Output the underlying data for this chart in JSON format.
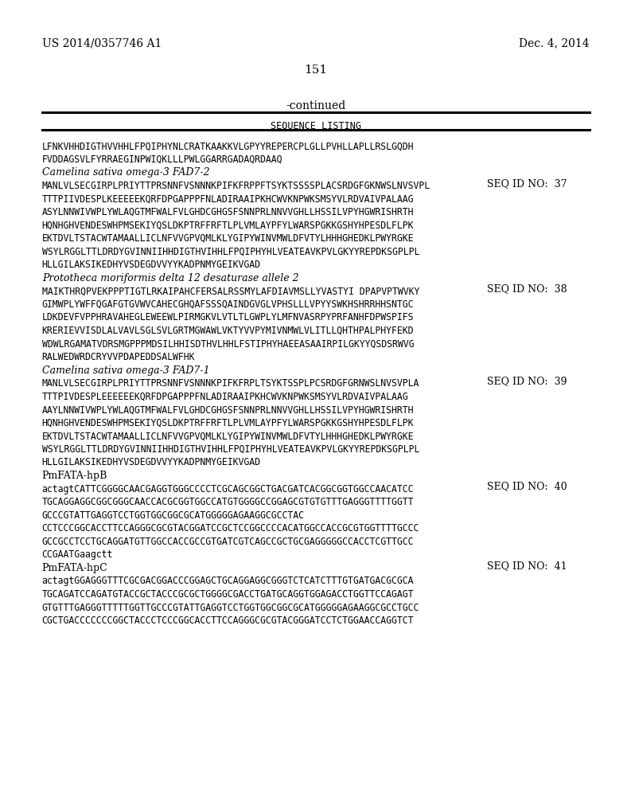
{
  "patent_number": "US 2014/0357746 A1",
  "date": "Dec. 4, 2014",
  "page_number": "151",
  "continued": "-continued",
  "section_title": "SEQUENCE LISTING",
  "background_color": "#ffffff",
  "text_color": "#000000",
  "lines": [
    {
      "text": "LFNKVHHDIGTHVVHHLFPQIPHYNLCRATKAAKKVLGPYYREPERCPLGLLPVHLLAPLLRSLGQDH",
      "style": "mono"
    },
    {
      "text": "",
      "style": ""
    },
    {
      "text": "FVDDAGSVLFYRRAEGINPWIQKLLLPWLGGARRGADAQRDAAQ",
      "style": "mono"
    },
    {
      "text": "",
      "style": ""
    },
    {
      "text": "Camelina sativa omega-3 FAD7-2",
      "style": "italic"
    },
    {
      "text": "",
      "style": ""
    },
    {
      "text": "MANLVLSECGIRPLPRIYTTPRSNNFVSNNNKPIFKFRPPFTSYKTSSSSPLACSRDGFGKNWSLNVSVPL",
      "style": "mono"
    },
    {
      "text": "",
      "style": ""
    },
    {
      "text": "TTTPIIVDESPLKEEEEEKQRFDPGAPPPFNLADIRAAIPKHCWVKNPWKSMSYVLRDVAIVPALAAG",
      "style": "mono"
    },
    {
      "text": "",
      "style": ""
    },
    {
      "text": "ASYLNNWIVWPLYWLAQGTMFWALFVLGHDCGHGSFSNNPRLNNVVGHLLHSSILVPYHGWRISHRTH",
      "style": "mono"
    },
    {
      "text": "",
      "style": ""
    },
    {
      "text": "HQNHGHVENDESWHPMSEKIYQSLDKPTRFFRFTLPLVMLAYPFYLWARSPGKKGSHYHPESDLFLPK",
      "style": "mono"
    },
    {
      "text": "",
      "style": ""
    },
    {
      "text": "EKTDVLTSTACWTAMAALLICLNFVVGPVQMLKLYGIPYWINVMWLDFVTYLHHHGHEDKLPWYRGKE",
      "style": "mono"
    },
    {
      "text": "",
      "style": ""
    },
    {
      "text": "WSYLRGGLTTLDRDYGVINNIIHHDIGTHVIHHLFPQIPHYHLVEATEAVKPVLGKYYREPDKSGPLPL",
      "style": "mono"
    },
    {
      "text": "",
      "style": ""
    },
    {
      "text": "HLLGILAKSIKEDHYVSDEGDVVYYKADPNMYGEIKVGAD",
      "style": "mono"
    },
    {
      "text": "",
      "style": ""
    },
    {
      "text": "Prototheca moriformis delta 12 desaturase allele 2",
      "style": "italic"
    },
    {
      "text": "",
      "style": ""
    },
    {
      "text": "MAIKTHRQPVEKPPPTIGTLRKAIPAHCFERSALRSSMYLAFDIAVMSLLYVASTYI DPAPVPTWVKY",
      "style": "mono"
    },
    {
      "text": "",
      "style": ""
    },
    {
      "text": "GIMWPLYWFFQGAFGTGVWVCAHECGHQAFSSSQAINDGVGLVPHSLLLVPYYSWKHSHRRHHSNTGC",
      "style": "mono"
    },
    {
      "text": "",
      "style": ""
    },
    {
      "text": "LDKDEVFVPPHRAVAHEGLEWEEWLPIRMGKVLVTLTLGWPLYLMFNVASRPYPRFANHFDPWSPIFS",
      "style": "mono"
    },
    {
      "text": "",
      "style": ""
    },
    {
      "text": "KRERIEVVISDLALVAVLSGLSVLGRTMGWAWLVKTYVVPYMIVNMWLVLITLLQHTHPALPHYFEKD",
      "style": "mono"
    },
    {
      "text": "",
      "style": ""
    },
    {
      "text": "WDWLRGAMATVDRSMGPPPMDSILHHISDTHVLHHLFSTIPHYHAEEASAAIRPILGKYYQSDSRWVG",
      "style": "mono"
    },
    {
      "text": "",
      "style": ""
    },
    {
      "text": "RALWEDWRDCRYVVPDAPEDDSALWFHK",
      "style": "mono"
    },
    {
      "text": "",
      "style": ""
    },
    {
      "text": "Camelina sativa omega-3 FAD7-1",
      "style": "italic"
    },
    {
      "text": "",
      "style": ""
    },
    {
      "text": "MANLVLSECGIRPLPRIYTTPRSNNFVSNNNKPIFKFRPLTSYKTSSPLPCSRDGFGRNWSLNVSVPLA",
      "style": "mono"
    },
    {
      "text": "",
      "style": ""
    },
    {
      "text": "TTTPIVDESPLEEEEEEKQRFDPGAPPPFNLADIRAAIPKHCWVKNPWKSMSYVLRDVAIVPALAAG",
      "style": "mono"
    },
    {
      "text": "",
      "style": ""
    },
    {
      "text": "AAYLNNWIVWPLYWLAQGTMFWALFVLGHDCGHGSFSNNPRLNNVVGHLLHSSILVPYHGWRISHRTH",
      "style": "mono"
    },
    {
      "text": "",
      "style": ""
    },
    {
      "text": "HQNHGHVENDESWHPMSEKIYQSLDKPTRFFRFTLPLVMLAYPFYLWARSPGKKGSHYHPESDLFLPK",
      "style": "mono"
    },
    {
      "text": "",
      "style": ""
    },
    {
      "text": "EKTDVLTSTACWTAMAALLICLNFVVGPVQMLKLYGIPYWINVMWLDFVTYLHHHGHEDKLPWYRGKE",
      "style": "mono"
    },
    {
      "text": "",
      "style": ""
    },
    {
      "text": "WSYLRGGLTTLDRDYGVINNIIHHDIGTHVIHHLFPQIPHYHLVEATEAVKPVLGKYYREPDKSGPLPL",
      "style": "mono"
    },
    {
      "text": "",
      "style": ""
    },
    {
      "text": "HLLGILAKSIKEDHYVSDEGDVVYYKADPNMYGEIKVGAD",
      "style": "mono"
    },
    {
      "text": "",
      "style": ""
    },
    {
      "text": "PmFATA-hpB",
      "style": "normal"
    },
    {
      "text": "",
      "style": ""
    },
    {
      "text": "actagtCATTCGGGGCAACGAGGTGGGCCCCTCGCAGCGGCTGACGATCACGGCGGTGGCCAACATCC",
      "style": "mono"
    },
    {
      "text": "",
      "style": ""
    },
    {
      "text": "TGCAGGAGGCGGCGGGCAACCACGCGGTGGCCATGTGGGGCCGGAGCGTGTGTTTGAGGGTTTTGGTT",
      "style": "mono"
    },
    {
      "text": "",
      "style": ""
    },
    {
      "text": "GCCCGTATTGAGGTCCTGGTGGCGGCGCATGGGGGAGAAGGCGCCTAC",
      "style": "mono"
    },
    {
      "text": "",
      "style": ""
    },
    {
      "text": "CCTCCCGGCACCTTCCAGGGCGCGTACGGATCCGCTCCGGCCCCACATGGCCACCGCGTGGTTTTGCCC",
      "style": "mono"
    },
    {
      "text": "",
      "style": ""
    },
    {
      "text": "GCCGCCTCCTGCAGGATGTTGGCCACCGCCGTGATCGTCAGCCGCTGCGAGGGGGCCACCTCGTTGCC",
      "style": "mono"
    },
    {
      "text": "",
      "style": ""
    },
    {
      "text": "CCGAATGaagctt",
      "style": "mono"
    },
    {
      "text": "",
      "style": ""
    },
    {
      "text": "PmFATA-hpC",
      "style": "normal"
    },
    {
      "text": "",
      "style": ""
    },
    {
      "text": "actagtGGAGGGTTTCGCGACGGACCCGGAGCTGCAGGAGGCGGGTCTCATCTTTGTGATGACGCGCA",
      "style": "mono"
    },
    {
      "text": "",
      "style": ""
    },
    {
      "text": "TGCAGATCCAGATGTACCGCTACCCGCGCTGGGGCGACCTGATGCAGGTGGAGACCTGGTTCCAGAGT",
      "style": "mono"
    },
    {
      "text": "",
      "style": ""
    },
    {
      "text": "GTGTTTGAGGGTTTTTGGTTGCCCGTATTGAGGTCCTGGTGGCGGCGCATGGGGGAGAAGGCGCCTGCC",
      "style": "mono"
    },
    {
      "text": "",
      "style": ""
    },
    {
      "text": "CGCTGACCCCCCCGGCTACCCTCCCGGCACCTTCCAGGGCGCGTACGGGATCCTCTGGAACCAGGTCT",
      "style": "mono"
    }
  ],
  "seq_ids": [
    {
      "label": "SEQ ID NO:  37",
      "after_line_index": 4
    },
    {
      "label": "SEQ ID NO:  38",
      "after_line_index": 20
    },
    {
      "label": "SEQ ID NO:  39",
      "after_line_index": 34
    },
    {
      "label": "SEQ ID NO:  40",
      "after_line_index": 50
    },
    {
      "label": "SEQ ID NO:  41",
      "after_line_index": 62
    }
  ]
}
